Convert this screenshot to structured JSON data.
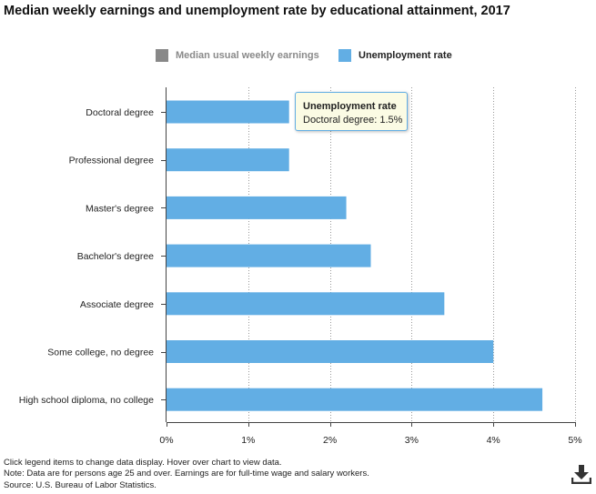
{
  "title": "Median weekly earnings and unemployment rate by educational attainment, 2017",
  "legend": [
    {
      "label": "Median usual weekly earnings",
      "color": "#888888",
      "state": "inactive"
    },
    {
      "label": "Unemployment rate",
      "color": "#62aee4",
      "state": "active"
    }
  ],
  "tooltip": {
    "title": "Unemployment rate",
    "body": "Doctoral degree: 1.5%"
  },
  "notes": [
    "Click legend items to change data display. Hover over chart to view data.",
    "Note: Data are for persons age 25 and over. Earnings are for full-time wage and salary workers.",
    "Source: U.S. Bureau of Labor Statistics."
  ],
  "download_icon": "download-icon",
  "chart_data": {
    "type": "bar",
    "orientation": "horizontal",
    "title": "Median weekly earnings and unemployment rate by educational attainment, 2017",
    "xlabel": "",
    "ylabel": "",
    "xlim": [
      0,
      5
    ],
    "x_ticks": [
      0,
      1,
      2,
      3,
      4,
      5
    ],
    "x_tick_labels": [
      "0%",
      "1%",
      "2%",
      "3%",
      "4%",
      "5%"
    ],
    "grid": "vertical dotted",
    "legend_position": "top-center",
    "bar_color": "#62aee4",
    "categories": [
      "Doctoral degree",
      "Professional degree",
      "Master's degree",
      "Bachelor's degree",
      "Associate degree",
      "Some college, no degree",
      "High school diploma, no college"
    ],
    "series": [
      {
        "name": "Unemployment rate",
        "values": [
          1.5,
          1.5,
          2.2,
          2.5,
          3.4,
          4.0,
          4.6
        ]
      }
    ]
  }
}
